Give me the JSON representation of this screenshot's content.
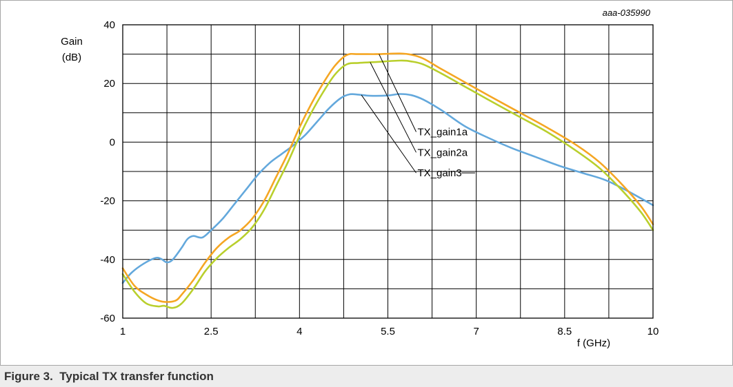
{
  "caption": "Figure 3.  Typical TX transfer function",
  "doc_code": "aaa-035990",
  "chart_data": {
    "type": "line",
    "ylabel_lines": [
      "Gain",
      "(dB)"
    ],
    "xlabel": "f (GHz)",
    "xlim": [
      1,
      10
    ],
    "ylim": [
      -60,
      40
    ],
    "x_ticks": [
      "1",
      "2.5",
      "4",
      "5.5",
      "7",
      "8.5",
      "10"
    ],
    "y_ticks": [
      "40",
      "20",
      "0",
      "-20",
      "-40",
      "-60"
    ],
    "grid": true,
    "series": [
      {
        "name": "TX_gain1a",
        "color": "#f5a623",
        "points": [
          [
            1.0,
            -43
          ],
          [
            1.2,
            -49
          ],
          [
            1.4,
            -52
          ],
          [
            1.6,
            -54
          ],
          [
            1.75,
            -54.5
          ],
          [
            1.9,
            -54
          ],
          [
            2.0,
            -52
          ],
          [
            2.2,
            -47
          ],
          [
            2.4,
            -41
          ],
          [
            2.6,
            -36
          ],
          [
            2.8,
            -32.5
          ],
          [
            3.0,
            -30
          ],
          [
            3.2,
            -26
          ],
          [
            3.4,
            -20
          ],
          [
            3.6,
            -12
          ],
          [
            3.8,
            -4
          ],
          [
            4.0,
            5
          ],
          [
            4.2,
            13
          ],
          [
            4.4,
            20
          ],
          [
            4.6,
            26
          ],
          [
            4.8,
            29.7
          ],
          [
            5.0,
            30
          ],
          [
            5.3,
            30
          ],
          [
            5.7,
            30.2
          ],
          [
            5.9,
            29.8
          ],
          [
            6.1,
            28.5
          ],
          [
            6.4,
            25
          ],
          [
            6.8,
            20.5
          ],
          [
            7.2,
            16
          ],
          [
            7.7,
            10.5
          ],
          [
            8.2,
            5
          ],
          [
            8.7,
            -1
          ],
          [
            9.1,
            -7
          ],
          [
            9.5,
            -15
          ],
          [
            9.8,
            -22
          ],
          [
            10.0,
            -28
          ]
        ]
      },
      {
        "name": "TX_gain2a",
        "color": "#b9cf2c",
        "points": [
          [
            1.0,
            -45
          ],
          [
            1.2,
            -51
          ],
          [
            1.4,
            -55
          ],
          [
            1.6,
            -56
          ],
          [
            1.7,
            -55.8
          ],
          [
            1.85,
            -56.5
          ],
          [
            2.0,
            -55
          ],
          [
            2.2,
            -50
          ],
          [
            2.4,
            -44
          ],
          [
            2.6,
            -39.5
          ],
          [
            2.8,
            -36
          ],
          [
            3.0,
            -33
          ],
          [
            3.2,
            -29
          ],
          [
            3.4,
            -23
          ],
          [
            3.6,
            -15
          ],
          [
            3.8,
            -7
          ],
          [
            4.0,
            2
          ],
          [
            4.2,
            10
          ],
          [
            4.4,
            17
          ],
          [
            4.6,
            23
          ],
          [
            4.8,
            26.5
          ],
          [
            5.0,
            27
          ],
          [
            5.3,
            27.3
          ],
          [
            5.7,
            27.8
          ],
          [
            5.9,
            27.5
          ],
          [
            6.1,
            26.5
          ],
          [
            6.4,
            23.5
          ],
          [
            6.8,
            19
          ],
          [
            7.2,
            14.5
          ],
          [
            7.7,
            9
          ],
          [
            8.2,
            3.5
          ],
          [
            8.7,
            -3
          ],
          [
            9.1,
            -9
          ],
          [
            9.5,
            -17
          ],
          [
            9.8,
            -24
          ],
          [
            10.0,
            -30
          ]
        ]
      },
      {
        "name": "TX_gain3",
        "color": "#63a8dc",
        "points": [
          [
            1.0,
            -48
          ],
          [
            1.15,
            -44.5
          ],
          [
            1.35,
            -41.5
          ],
          [
            1.55,
            -39.5
          ],
          [
            1.65,
            -39.8
          ],
          [
            1.75,
            -41
          ],
          [
            1.85,
            -40
          ],
          [
            2.0,
            -36
          ],
          [
            2.1,
            -33
          ],
          [
            2.2,
            -32
          ],
          [
            2.35,
            -32.5
          ],
          [
            2.5,
            -30
          ],
          [
            2.7,
            -26
          ],
          [
            2.9,
            -21
          ],
          [
            3.1,
            -16
          ],
          [
            3.3,
            -11
          ],
          [
            3.5,
            -7
          ],
          [
            3.7,
            -4
          ],
          [
            3.9,
            -1
          ],
          [
            4.1,
            2.5
          ],
          [
            4.3,
            7
          ],
          [
            4.5,
            11.5
          ],
          [
            4.7,
            15
          ],
          [
            4.85,
            16.3
          ],
          [
            5.0,
            16.2
          ],
          [
            5.2,
            15.8
          ],
          [
            5.5,
            15.9
          ],
          [
            5.7,
            16.4
          ],
          [
            5.9,
            16
          ],
          [
            6.1,
            14.5
          ],
          [
            6.4,
            11
          ],
          [
            6.8,
            5.5
          ],
          [
            7.2,
            1.5
          ],
          [
            7.6,
            -2
          ],
          [
            8.0,
            -5
          ],
          [
            8.4,
            -8
          ],
          [
            8.8,
            -10.5
          ],
          [
            9.2,
            -13
          ],
          [
            9.6,
            -17
          ],
          [
            10.0,
            -21.5
          ]
        ]
      }
    ],
    "annotations": [
      "TX_gain1a",
      "TX_gain2a",
      "TX_gain3"
    ]
  }
}
